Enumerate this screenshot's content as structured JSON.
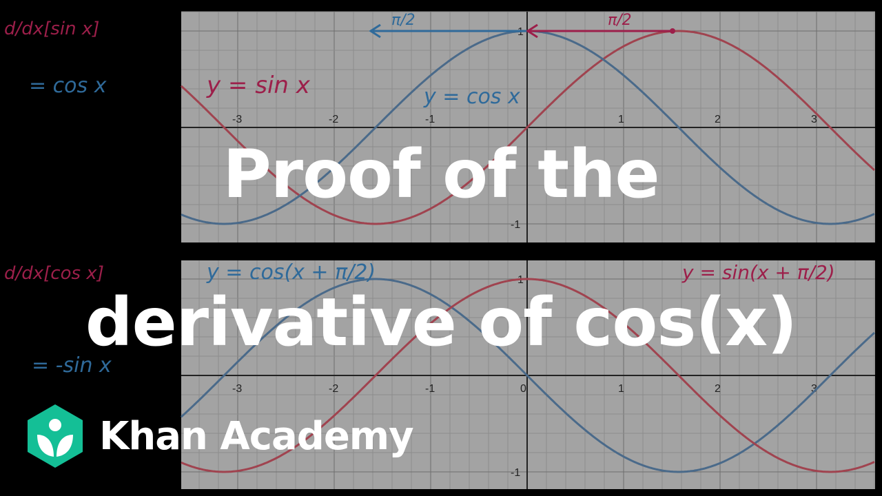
{
  "title": {
    "line1": "Proof of the",
    "line2": "derivative of cos(x)"
  },
  "brand": {
    "name": "Khan Academy",
    "color": "#14bf96"
  },
  "left_notes": {
    "top_expr": "d/dx[sin x]",
    "top_result": "= cos x",
    "bottom_expr": "d/dx[cos x]",
    "bottom_result": "= -sin x"
  },
  "top_graph": {
    "annotations": {
      "sin_label": "y = sin x",
      "cos_label": "y = cos x",
      "shift_left": "π/2",
      "shift_right": "π/2"
    },
    "x_ticks": [
      "-3",
      "-2",
      "-1",
      "1",
      "2",
      "3"
    ],
    "y_ticks": [
      "1",
      "-1"
    ],
    "series": [
      {
        "fn": "sin x",
        "color": "#a0434f"
      },
      {
        "fn": "cos x",
        "color": "#4a6a8a"
      }
    ]
  },
  "bottom_graph": {
    "annotations": {
      "cos_shift_label": "y = cos(x + π/2)",
      "sin_shift_label": "y = sin(x + π/2)"
    },
    "x_ticks": [
      "-3",
      "-2",
      "-1",
      "0",
      "1",
      "2",
      "3"
    ],
    "y_ticks": [
      "1",
      "-1"
    ],
    "series": [
      {
        "fn": "-sin x",
        "color": "#4a6a8a"
      },
      {
        "fn": "cos x",
        "color": "#a0434f"
      }
    ]
  },
  "colors": {
    "red_ink": "#9c1f4a",
    "blue_ink": "#2f6a9a",
    "graph_bg": "#a3a3a3"
  }
}
